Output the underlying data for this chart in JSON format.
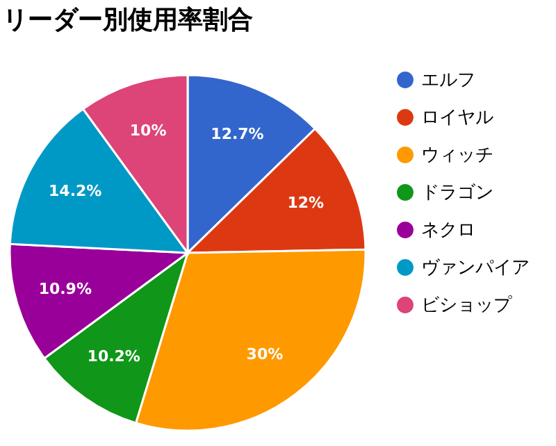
{
  "chart_data": {
    "type": "pie",
    "title": "リーダー別使用率割合",
    "categories": [
      "エルフ",
      "ロイヤル",
      "ウィッチ",
      "ドラゴン",
      "ネクロ",
      "ヴァンパイア",
      "ビショップ"
    ],
    "values": [
      12.7,
      12,
      30,
      10.2,
      10.9,
      14.2,
      10
    ],
    "colors": [
      "#3366cc",
      "#dc3912",
      "#ff9900",
      "#109618",
      "#990099",
      "#0099c6",
      "#dd4477"
    ],
    "value_labels": [
      "12.7%",
      "12%",
      "30%",
      "10.2%",
      "10.9%",
      "14.2%",
      "10%"
    ],
    "legend": "top right"
  }
}
